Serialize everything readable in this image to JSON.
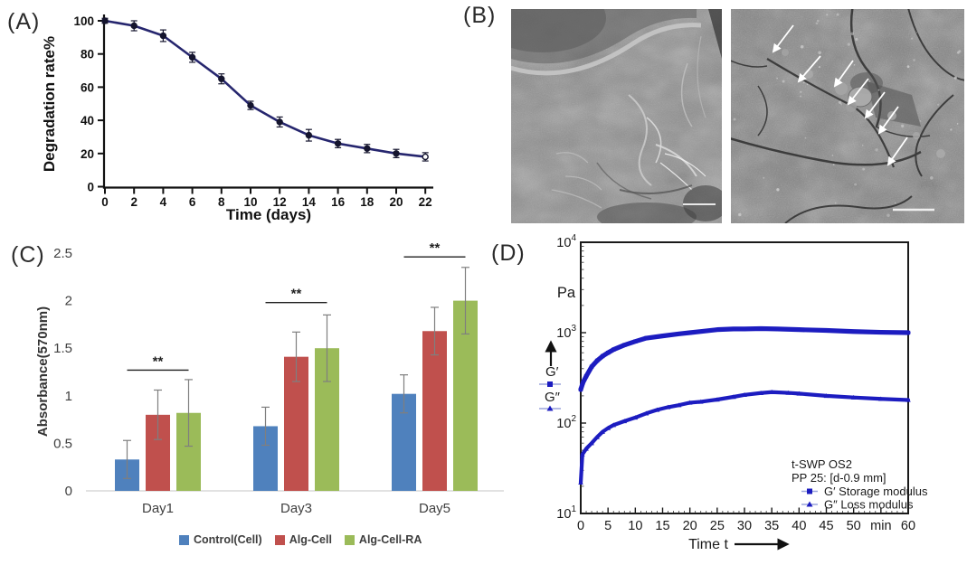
{
  "figure_labels": {
    "a": "(A)",
    "b": "(B)",
    "c": "(C)",
    "d": "(D)"
  },
  "panel_b": {
    "arrow_count": 7,
    "has_scale_bars": true
  },
  "chart_data": [
    {
      "id": "A",
      "type": "line",
      "xlabel": "Time (days)",
      "ylabel": "Degradation rate%",
      "x": [
        0,
        2,
        4,
        6,
        8,
        10,
        12,
        14,
        16,
        18,
        20,
        22
      ],
      "values": [
        100,
        97,
        91,
        78,
        65,
        49,
        39,
        31,
        26,
        23,
        20,
        18
      ],
      "errors": [
        1.5,
        3,
        3.5,
        3,
        3,
        2.5,
        3,
        3.5,
        2.5,
        2.5,
        2.5,
        2.5
      ],
      "xticks": [
        0,
        2,
        4,
        6,
        8,
        10,
        12,
        14,
        16,
        18,
        20,
        22
      ],
      "yticks": [
        0,
        20,
        40,
        60,
        80,
        100
      ],
      "xlim": [
        0,
        22
      ],
      "ylim": [
        0,
        100
      ],
      "line_color": "#26266e",
      "marker_color": "#15152e"
    },
    {
      "id": "C",
      "type": "bar",
      "ylabel": "Absorbance(570nm)",
      "categories": [
        "Day1",
        "Day3",
        "Day5"
      ],
      "series": [
        {
          "name": "Control(Cell)",
          "color": "#4f81bd",
          "values": [
            0.33,
            0.68,
            1.02
          ],
          "errors": [
            0.2,
            0.2,
            0.2
          ]
        },
        {
          "name": "Alg-Cell",
          "color": "#c0504d",
          "values": [
            0.8,
            1.41,
            1.68
          ],
          "errors": [
            0.26,
            0.26,
            0.25
          ]
        },
        {
          "name": "Alg-Cell-RA",
          "color": "#9bbb59",
          "values": [
            0.82,
            1.5,
            2.0
          ],
          "errors": [
            0.35,
            0.35,
            0.35
          ]
        }
      ],
      "yticks": [
        0,
        0.5,
        1,
        1.5,
        2,
        2.5
      ],
      "ylim": [
        0,
        2.5
      ],
      "significance": [
        {
          "category": "Day1",
          "label": "**",
          "y": 1.27
        },
        {
          "category": "Day3",
          "label": "**",
          "y": 1.98
        },
        {
          "category": "Day5",
          "label": "**",
          "y": 2.46
        }
      ]
    },
    {
      "id": "D",
      "type": "line",
      "yscale": "log",
      "y_unit": "Pa",
      "xlabel": "Time t",
      "x_unit": "min",
      "ylim": [
        10,
        10000
      ],
      "xlim": [
        0,
        60
      ],
      "ytick_exponents": [
        1,
        2,
        3,
        4
      ],
      "xticks": [
        0,
        5,
        10,
        15,
        20,
        25,
        30,
        35,
        40,
        45,
        50,
        55,
        60
      ],
      "xtick_labels": [
        "0",
        "5",
        "10",
        "15",
        "20",
        "25",
        "30",
        "35",
        "40",
        "45",
        "50",
        "min",
        "60"
      ],
      "axis_arrow_labels": [
        "G′",
        "G″"
      ],
      "annotations": [
        "t-SWP OS2",
        "PP 25: [d-0.9 mm]"
      ],
      "series": [
        {
          "name": "G′ Storage modulus",
          "marker": "square",
          "color": "#1c1cc0",
          "x": [
            0,
            0.4,
            1,
            2,
            3,
            4,
            5,
            6,
            8,
            10,
            12,
            15,
            18,
            20,
            22,
            25,
            28,
            30,
            33,
            36,
            40,
            45,
            50,
            55,
            60
          ],
          "values": [
            235,
            280,
            330,
            420,
            490,
            550,
            600,
            650,
            730,
            800,
            870,
            920,
            970,
            1000,
            1030,
            1080,
            1100,
            1100,
            1110,
            1100,
            1080,
            1060,
            1030,
            1010,
            1000
          ]
        },
        {
          "name": "G″ Loss modulus",
          "marker": "triangle",
          "color": "#1c1cc0",
          "x": [
            0,
            0.3,
            1,
            2,
            3,
            4,
            5,
            6,
            8,
            10,
            12,
            14,
            16,
            18,
            20,
            22,
            25,
            28,
            30,
            33,
            35,
            38,
            40,
            45,
            50,
            55,
            60
          ],
          "values": [
            22,
            45,
            52,
            60,
            70,
            80,
            88,
            95,
            105,
            115,
            128,
            140,
            150,
            158,
            168,
            172,
            182,
            195,
            205,
            215,
            220,
            216,
            212,
            200,
            192,
            185,
            180
          ]
        }
      ]
    }
  ]
}
